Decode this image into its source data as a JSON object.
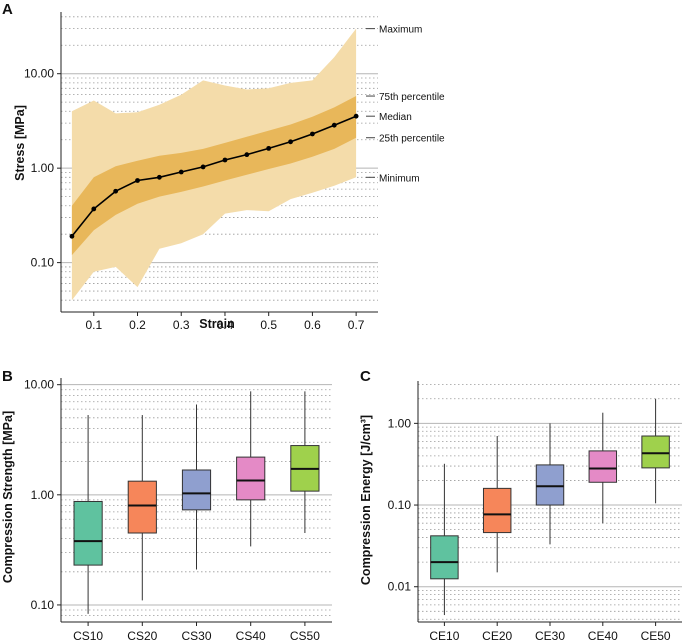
{
  "chart_data": [
    {
      "panel": "A",
      "type": "area",
      "xlabel": "Strain",
      "ylabel": "Stress [MPa]",
      "yscale": "log",
      "xlim": [
        0.025,
        0.75
      ],
      "ylim": [
        0.03,
        45
      ],
      "x_ticks": [
        0.1,
        0.2,
        0.3,
        0.4,
        0.5,
        0.6,
        0.7
      ],
      "x_tick_labels": [
        "0.1",
        "0.2",
        "0.3",
        "0.4",
        "0.5",
        "0.6",
        "0.7"
      ],
      "y_ticks": [
        0.1,
        1,
        10
      ],
      "y_tick_labels": [
        "0.10",
        "1.00",
        "10.00"
      ],
      "grid": "major solid, minor dotted",
      "x": [
        0.05,
        0.1,
        0.15,
        0.2,
        0.25,
        0.3,
        0.35,
        0.4,
        0.45,
        0.5,
        0.55,
        0.6,
        0.65,
        0.7
      ],
      "series": [
        {
          "name": "Median",
          "values": [
            0.19,
            0.37,
            0.57,
            0.74,
            0.8,
            0.91,
            1.03,
            1.22,
            1.39,
            1.62,
            1.9,
            2.3,
            2.85,
            3.55
          ]
        },
        {
          "name": "25th percentile",
          "values": [
            0.12,
            0.22,
            0.32,
            0.42,
            0.5,
            0.56,
            0.64,
            0.74,
            0.85,
            0.98,
            1.12,
            1.32,
            1.6,
            2.1
          ]
        },
        {
          "name": "75th percentile",
          "values": [
            0.4,
            0.8,
            1.05,
            1.2,
            1.35,
            1.45,
            1.6,
            1.85,
            2.15,
            2.5,
            2.9,
            3.5,
            4.4,
            5.8
          ]
        },
        {
          "name": "Minimum",
          "values": [
            0.04,
            0.08,
            0.09,
            0.055,
            0.14,
            0.16,
            0.2,
            0.33,
            0.36,
            0.35,
            0.47,
            0.55,
            0.65,
            0.8
          ]
        },
        {
          "name": "Maximum",
          "values": [
            4.0,
            5.2,
            3.8,
            3.9,
            4.7,
            6.0,
            8.5,
            7.5,
            6.8,
            7.0,
            8.0,
            8.5,
            15.0,
            30.0
          ]
        }
      ],
      "annotations": [
        "Maximum",
        "75th percentile",
        "Median",
        "25th percentile",
        "Minimum"
      ],
      "annotation_values": [
        30.0,
        5.8,
        3.55,
        2.1,
        0.8
      ],
      "colors": {
        "outer_band": "#f4dcaa",
        "inner_band": "#e8b75a",
        "median": "#000000"
      }
    },
    {
      "panel": "B",
      "type": "box",
      "xlabel": "",
      "ylabel": "Compression Strength [MPa]",
      "yscale": "log",
      "ylim": [
        0.07,
        11.5
      ],
      "y_ticks": [
        0.1,
        1,
        10
      ],
      "y_tick_labels": [
        "0.10",
        "1.00",
        "10.00"
      ],
      "categories": [
        "CS10",
        "CS20",
        "CS30",
        "CS40",
        "CS50"
      ],
      "boxes": [
        {
          "min": 0.083,
          "q1": 0.23,
          "median": 0.38,
          "q3": 0.87,
          "max": 5.3,
          "color": "#5fc29f"
        },
        {
          "min": 0.11,
          "q1": 0.45,
          "median": 0.8,
          "q3": 1.33,
          "max": 5.3,
          "color": "#f6865a"
        },
        {
          "min": 0.21,
          "q1": 0.73,
          "median": 1.03,
          "q3": 1.68,
          "max": 6.6,
          "color": "#8f9fcf"
        },
        {
          "min": 0.34,
          "q1": 0.9,
          "median": 1.35,
          "q3": 2.2,
          "max": 8.7,
          "color": "#e48ac6"
        },
        {
          "min": 0.45,
          "q1": 1.08,
          "median": 1.72,
          "q3": 2.8,
          "max": 8.7,
          "color": "#9fd14c"
        }
      ]
    },
    {
      "panel": "C",
      "type": "box",
      "xlabel": "",
      "ylabel": "Compression Energy [J/cm³]",
      "yscale": "log",
      "ylim": [
        0.0037,
        3.3
      ],
      "y_ticks": [
        0.01,
        0.1,
        1
      ],
      "y_tick_labels": [
        "0.01",
        "0.10",
        "1.00"
      ],
      "categories": [
        "CE10",
        "CE20",
        "CE30",
        "CE40",
        "CE50"
      ],
      "boxes": [
        {
          "min": 0.0045,
          "q1": 0.0125,
          "median": 0.02,
          "q3": 0.042,
          "max": 0.32,
          "color": "#5fc29f"
        },
        {
          "min": 0.015,
          "q1": 0.046,
          "median": 0.077,
          "q3": 0.16,
          "max": 0.7,
          "color": "#f6865a"
        },
        {
          "min": 0.033,
          "q1": 0.1,
          "median": 0.17,
          "q3": 0.31,
          "max": 1.0,
          "color": "#8f9fcf"
        },
        {
          "min": 0.06,
          "q1": 0.19,
          "median": 0.28,
          "q3": 0.46,
          "max": 1.35,
          "color": "#e48ac6"
        },
        {
          "min": 0.105,
          "q1": 0.285,
          "median": 0.43,
          "q3": 0.7,
          "max": 2.0,
          "color": "#9fd14c"
        }
      ]
    }
  ]
}
